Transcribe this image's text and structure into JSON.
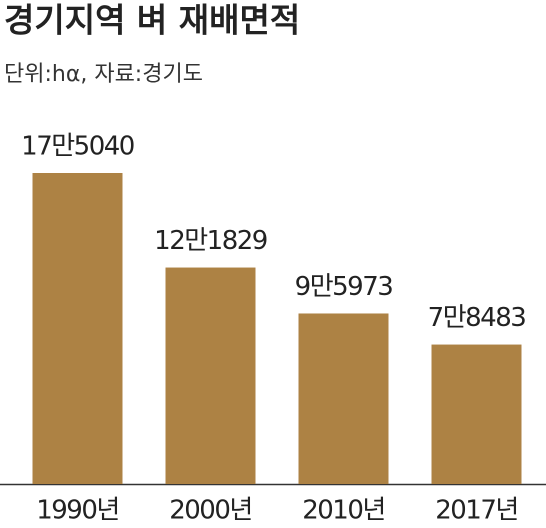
{
  "chart_data": {
    "type": "bar",
    "title": "경기지역 벼 재배면적",
    "subtitle": "단위:hα, 자료:경기도",
    "categories": [
      "1990년",
      "2000년",
      "2010년",
      "2017년"
    ],
    "values": [
      175040,
      121829,
      95973,
      78483
    ],
    "value_labels": [
      "17만5040",
      "12만1829",
      "9만5973",
      "7만8483"
    ],
    "color": "#ad8244"
  }
}
